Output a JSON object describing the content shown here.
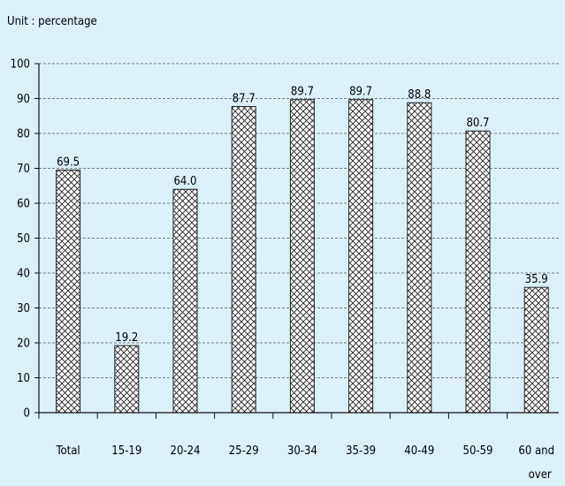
{
  "chart_data": {
    "type": "bar",
    "unit_label": "Unit : percentage",
    "categories": [
      {
        "line1": "Total",
        "line2": ""
      },
      {
        "line1": "15-19",
        "line2": ""
      },
      {
        "line1": "20-24",
        "line2": ""
      },
      {
        "line1": "25-29",
        "line2": ""
      },
      {
        "line1": "30-34",
        "line2": ""
      },
      {
        "line1": "35-39",
        "line2": ""
      },
      {
        "line1": "40-49",
        "line2": ""
      },
      {
        "line1": "50-59",
        "line2": ""
      },
      {
        "line1": "60 and",
        "line2": "over"
      }
    ],
    "values": [
      69.5,
      19.2,
      64.0,
      87.7,
      89.7,
      89.7,
      88.8,
      80.7,
      35.9
    ],
    "value_labels": [
      "69.5",
      "19.2",
      "64.0",
      "87.7",
      "89.7",
      "89.7",
      "88.8",
      "80.7",
      "35.9"
    ],
    "ylim": [
      0,
      100
    ],
    "yticks": [
      0,
      10,
      20,
      30,
      40,
      50,
      60,
      70,
      80,
      90,
      100
    ],
    "grid": true,
    "bar_pattern": "crosshatch",
    "colors": {
      "background": "#dcf0f9",
      "bar_stroke": "#222222",
      "grid": "#555555"
    }
  }
}
